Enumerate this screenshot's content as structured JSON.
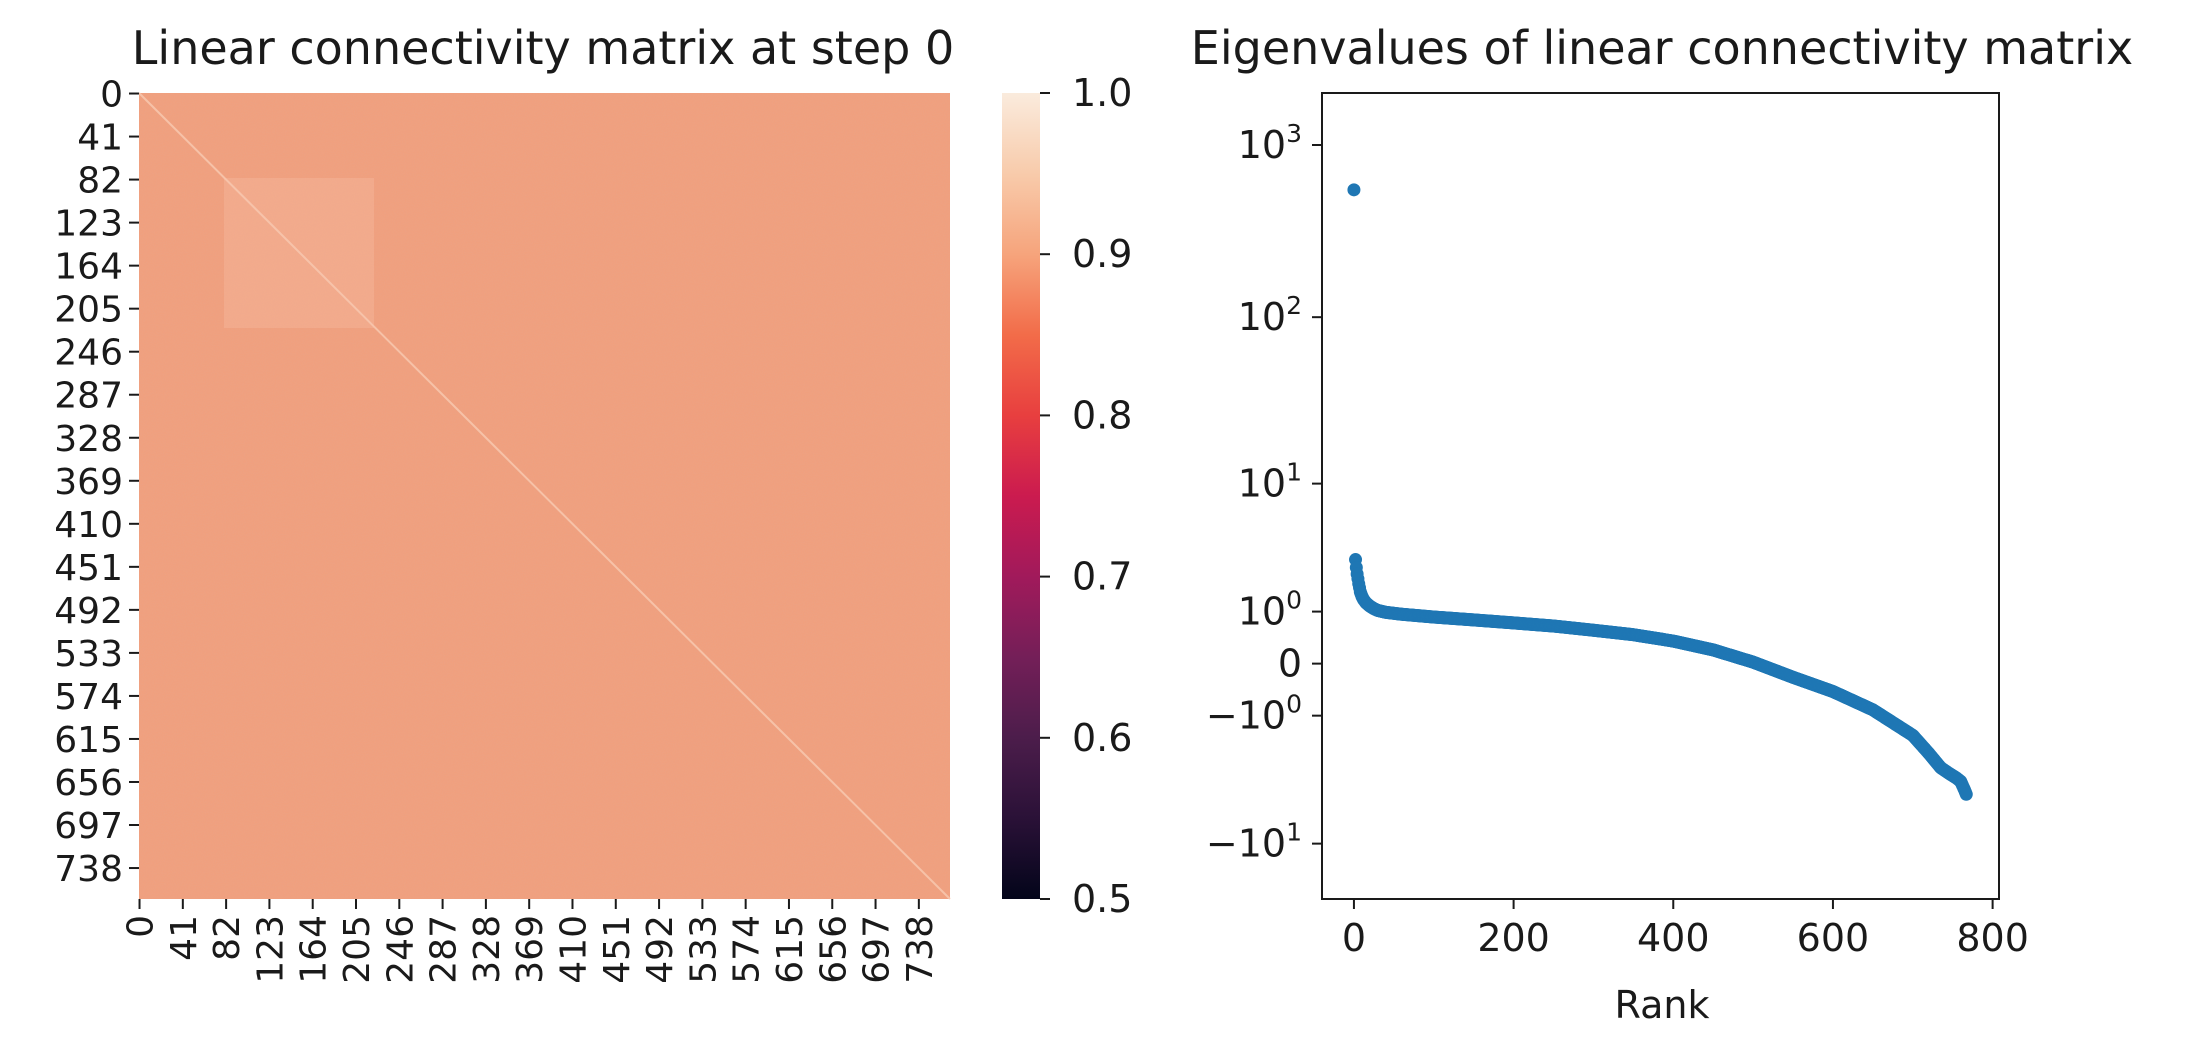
{
  "chart_data": [
    {
      "type": "heatmap",
      "title": "Linear connectivity matrix at step 0",
      "xlabel": "",
      "ylabel": "",
      "row_tick_labels": [
        "0",
        "41",
        "82",
        "123",
        "164",
        "205",
        "246",
        "287",
        "328",
        "369",
        "410",
        "451",
        "492",
        "533",
        "574",
        "615",
        "656",
        "697",
        "738"
      ],
      "col_tick_labels": [
        "0",
        "41",
        "82",
        "123",
        "164",
        "205",
        "246",
        "287",
        "328",
        "369",
        "410",
        "451",
        "492",
        "533",
        "574",
        "615",
        "656",
        "697",
        "738"
      ],
      "matrix_size": 768,
      "value_range": [
        0.5,
        1.0
      ],
      "typical_value": 0.92,
      "diagonal_value": 0.98,
      "bright_block": {
        "from": 82,
        "to": 205,
        "value": 0.95
      },
      "colorbar": {
        "colormap": "rocket",
        "ticks": [
          0.5,
          0.6,
          0.7,
          0.8,
          0.9,
          1.0
        ],
        "tick_labels": [
          "0.5",
          "0.6",
          "0.7",
          "0.8",
          "0.9",
          "1.0"
        ],
        "colors": [
          "#03051a",
          "#4c1d4b",
          "#a11a5b",
          "#e83f3f",
          "#f6a47c",
          "#faebdd"
        ]
      }
    },
    {
      "type": "scatter",
      "title": "Eigenvalues of linear connectivity matrix",
      "xlabel": "Rank",
      "ylabel": "",
      "xlim": [
        -40,
        808
      ],
      "x_ticks": [
        0,
        200,
        400,
        600,
        800
      ],
      "x_tick_labels": [
        "0",
        "200",
        "400",
        "600",
        "800"
      ],
      "y_scale": "symlog",
      "y_ticks": [
        {
          "value": 1000,
          "base": "10",
          "exp": "3",
          "neg": false
        },
        {
          "value": 100,
          "base": "10",
          "exp": "2",
          "neg": false
        },
        {
          "value": 10,
          "base": "10",
          "exp": "1",
          "neg": false
        },
        {
          "value": 1,
          "base": "10",
          "exp": "0",
          "neg": false
        },
        {
          "value": 0,
          "base": "0",
          "exp": "",
          "neg": false
        },
        {
          "value": -1,
          "base": "10",
          "exp": "0",
          "neg": true
        },
        {
          "value": -10,
          "base": "10",
          "exp": "1",
          "neg": true
        }
      ],
      "marker_color": "#1f77b4",
      "points": [
        [
          0,
          550
        ],
        [
          1,
          3.5
        ],
        [
          2,
          3.0
        ],
        [
          3,
          2.6
        ],
        [
          4,
          2.3
        ],
        [
          5,
          2.1
        ],
        [
          6,
          1.9
        ],
        [
          7,
          1.75
        ],
        [
          8,
          1.6
        ],
        [
          10,
          1.45
        ],
        [
          12,
          1.35
        ],
        [
          15,
          1.25
        ],
        [
          20,
          1.15
        ],
        [
          25,
          1.08
        ],
        [
          30,
          1.03
        ],
        [
          40,
          0.98
        ],
        [
          60,
          0.93
        ],
        [
          100,
          0.86
        ],
        [
          150,
          0.79
        ],
        [
          200,
          0.72
        ],
        [
          250,
          0.65
        ],
        [
          300,
          0.56
        ],
        [
          350,
          0.47
        ],
        [
          400,
          0.35
        ],
        [
          450,
          0.2
        ],
        [
          500,
          0.02
        ],
        [
          550,
          -0.2
        ],
        [
          600,
          -0.45
        ],
        [
          650,
          -0.85
        ],
        [
          700,
          -1.6
        ],
        [
          720,
          -2.3
        ],
        [
          735,
          -3.0
        ],
        [
          745,
          -3.3
        ],
        [
          755,
          -3.6
        ],
        [
          760,
          -3.8
        ],
        [
          765,
          -4.4
        ],
        [
          767,
          -4.7
        ]
      ]
    }
  ]
}
